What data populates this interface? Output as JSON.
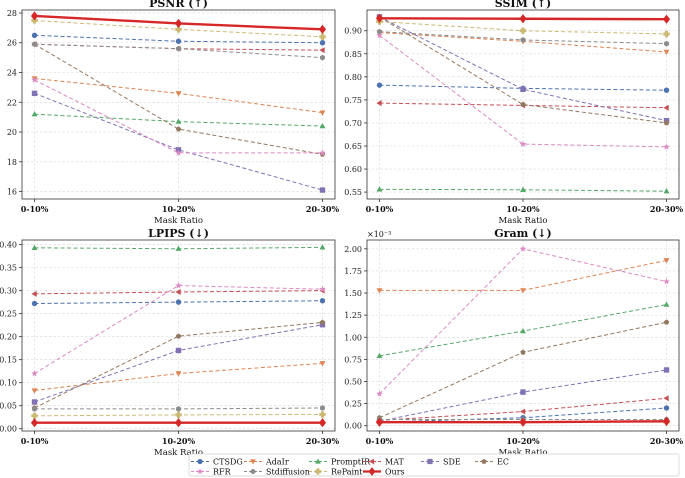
{
  "chart_data": [
    {
      "type": "line",
      "title": "PSNR (↑)",
      "xlabel": "Mask Ratio",
      "categories": [
        "0-10%",
        "10-20%",
        "20-30%"
      ],
      "ylim": [
        15.5,
        28.2
      ],
      "yticks": [
        16,
        18,
        20,
        22,
        24,
        26,
        28
      ],
      "tick_decimals": 0,
      "scale_label": "",
      "series": [
        {
          "name": "CTSDG",
          "values": [
            26.5,
            26.1,
            26.0
          ]
        },
        {
          "name": "AdaIr",
          "values": [
            23.6,
            22.6,
            21.3
          ]
        },
        {
          "name": "PromptIR",
          "values": [
            21.2,
            20.7,
            20.4
          ]
        },
        {
          "name": "MAT",
          "values": [
            25.9,
            25.6,
            25.5
          ]
        },
        {
          "name": "SDE",
          "values": [
            22.6,
            18.8,
            16.1
          ]
        },
        {
          "name": "EC",
          "values": [
            25.9,
            20.2,
            18.5
          ]
        },
        {
          "name": "RFR",
          "values": [
            23.5,
            18.6,
            18.6
          ]
        },
        {
          "name": "Stdiffusion",
          "values": [
            25.9,
            25.6,
            25.0
          ]
        },
        {
          "name": "RePaint",
          "values": [
            27.5,
            26.9,
            26.4
          ]
        },
        {
          "name": "Ours",
          "values": [
            27.8,
            27.3,
            26.9
          ]
        }
      ]
    },
    {
      "type": "line",
      "title": "SSIM (↑)",
      "xlabel": "Mask Ratio",
      "categories": [
        "0-10%",
        "10-20%",
        "20-30%"
      ],
      "ylim": [
        0.535,
        0.945
      ],
      "yticks": [
        0.55,
        0.6,
        0.65,
        0.7,
        0.75,
        0.8,
        0.85,
        0.9
      ],
      "tick_decimals": 2,
      "scale_label": "",
      "series": [
        {
          "name": "CTSDG",
          "values": [
            0.782,
            0.775,
            0.771
          ]
        },
        {
          "name": "AdaIr",
          "values": [
            0.896,
            0.877,
            0.854
          ]
        },
        {
          "name": "PromptIR",
          "values": [
            0.556,
            0.555,
            0.552
          ]
        },
        {
          "name": "MAT",
          "values": [
            0.743,
            0.738,
            0.733
          ]
        },
        {
          "name": "SDE",
          "values": [
            0.93,
            0.773,
            0.705
          ]
        },
        {
          "name": "EC",
          "values": [
            0.93,
            0.74,
            0.7
          ]
        },
        {
          "name": "RFR",
          "values": [
            0.89,
            0.654,
            0.648
          ]
        },
        {
          "name": "Stdiffusion",
          "values": [
            0.898,
            0.88,
            0.872
          ]
        },
        {
          "name": "RePaint",
          "values": [
            0.92,
            0.9,
            0.893
          ]
        },
        {
          "name": "Ours",
          "values": [
            0.927,
            0.926,
            0.925
          ]
        }
      ]
    },
    {
      "type": "line",
      "title": "LPIPS (↓)",
      "xlabel": "Mask Ratio",
      "categories": [
        "0-10%",
        "10-20%",
        "20-30%"
      ],
      "ylim": [
        -0.005,
        0.41
      ],
      "yticks": [
        0.0,
        0.05,
        0.1,
        0.15,
        0.2,
        0.25,
        0.3,
        0.35,
        0.4
      ],
      "tick_decimals": 2,
      "scale_label": "",
      "series": [
        {
          "name": "CTSDG",
          "values": [
            0.272,
            0.275,
            0.278
          ]
        },
        {
          "name": "AdaIr",
          "values": [
            0.083,
            0.12,
            0.142
          ]
        },
        {
          "name": "PromptIR",
          "values": [
            0.393,
            0.391,
            0.394
          ]
        },
        {
          "name": "MAT",
          "values": [
            0.293,
            0.297,
            0.3
          ]
        },
        {
          "name": "SDE",
          "values": [
            0.058,
            0.17,
            0.226
          ]
        },
        {
          "name": "EC",
          "values": [
            0.045,
            0.201,
            0.231
          ]
        },
        {
          "name": "RFR",
          "values": [
            0.12,
            0.311,
            0.303
          ]
        },
        {
          "name": "Stdiffusion",
          "values": [
            0.043,
            0.043,
            0.045
          ]
        },
        {
          "name": "RePaint",
          "values": [
            0.028,
            0.03,
            0.031
          ]
        },
        {
          "name": "Ours",
          "values": [
            0.013,
            0.013,
            0.013
          ]
        }
      ]
    },
    {
      "type": "line",
      "title": "Gram (↓)",
      "xlabel": "Mask Ratio",
      "categories": [
        "0-10%",
        "10-20%",
        "20-30%"
      ],
      "ylim": [
        -0.06,
        2.1
      ],
      "yticks": [
        0.0,
        0.25,
        0.5,
        0.75,
        1.0,
        1.25,
        1.5,
        1.75,
        2.0
      ],
      "tick_decimals": 2,
      "scale_label": "×10⁻³",
      "series": [
        {
          "name": "CTSDG",
          "values": [
            0.04,
            0.09,
            0.2
          ]
        },
        {
          "name": "AdaIr",
          "values": [
            1.53,
            1.53,
            1.87
          ]
        },
        {
          "name": "PromptIR",
          "values": [
            0.79,
            1.07,
            1.37
          ]
        },
        {
          "name": "MAT",
          "values": [
            0.06,
            0.16,
            0.31
          ]
        },
        {
          "name": "SDE",
          "values": [
            0.05,
            0.38,
            0.63
          ]
        },
        {
          "name": "EC",
          "values": [
            0.09,
            0.83,
            1.17
          ]
        },
        {
          "name": "RFR",
          "values": [
            0.36,
            2.0,
            1.63
          ]
        },
        {
          "name": "Stdiffusion",
          "values": [
            0.07,
            0.07,
            0.07
          ]
        },
        {
          "name": "RePaint",
          "values": [
            0.04,
            0.04,
            0.04
          ]
        },
        {
          "name": "Ours",
          "values": [
            0.04,
            0.04,
            0.05
          ]
        }
      ]
    }
  ],
  "legend": {
    "placement": "bottom-center",
    "items": [
      {
        "name": "CTSDG",
        "color": "#4c72b0",
        "marker": "circle"
      },
      {
        "name": "AdaIr",
        "color": "#dd8452",
        "marker": "triangle-down"
      },
      {
        "name": "PromptIR",
        "color": "#55a868",
        "marker": "triangle-up"
      },
      {
        "name": "MAT",
        "color": "#c44e52",
        "marker": "triangle-left"
      },
      {
        "name": "SDE",
        "color": "#8172b3",
        "marker": "square"
      },
      {
        "name": "EC",
        "color": "#937860",
        "marker": "pentagon"
      },
      {
        "name": "RFR",
        "color": "#da8bc3",
        "marker": "star"
      },
      {
        "name": "Stdiffusion",
        "color": "#8c8c8c",
        "marker": "hexagon"
      },
      {
        "name": "RePaint",
        "color": "#ccb974",
        "marker": "plus"
      },
      {
        "name": "Ours",
        "color": "#d62728",
        "marker": "diamond"
      }
    ]
  }
}
